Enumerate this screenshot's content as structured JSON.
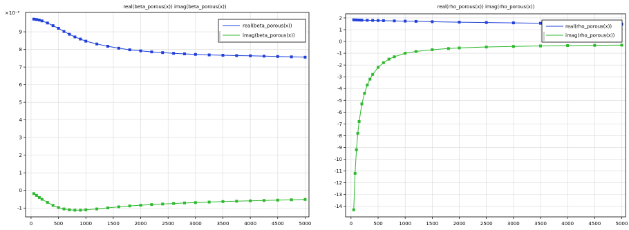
{
  "chart_data": [
    {
      "type": "line",
      "title": "real(beta_porous(x))  imag(beta_porous(x))",
      "y_exponent_label": "×10⁻⁶",
      "x_ticks": [
        "0",
        "500",
        "1000",
        "1500",
        "2000",
        "2500",
        "3000",
        "3500",
        "4000",
        "4500",
        "5000"
      ],
      "y_ticks": [
        "-1",
        "0",
        "1",
        "2",
        "3",
        "4",
        "5",
        "6",
        "7",
        "8",
        "9"
      ],
      "xlim": [
        -100,
        5070
      ],
      "ylim": [
        -1.5,
        10.1
      ],
      "grid": true,
      "legend_position": "top-right",
      "series": [
        {
          "name": "real(beta_porous(x))",
          "color": "#1f3fd8",
          "x": [
            50,
            100,
            150,
            200,
            300,
            400,
            500,
            600,
            700,
            800,
            900,
            1000,
            1200,
            1400,
            1600,
            1800,
            2000,
            2200,
            2400,
            2600,
            2800,
            3000,
            3250,
            3500,
            3750,
            4000,
            4250,
            4500,
            4750,
            5000
          ],
          "y": [
            9.72,
            9.7,
            9.67,
            9.62,
            9.5,
            9.35,
            9.2,
            9.02,
            8.86,
            8.71,
            8.59,
            8.47,
            8.31,
            8.18,
            8.07,
            7.98,
            7.92,
            7.86,
            7.82,
            7.78,
            7.75,
            7.72,
            7.69,
            7.67,
            7.65,
            7.64,
            7.62,
            7.6,
            7.58,
            7.56
          ]
        },
        {
          "name": "imag(beta_porous(x))",
          "color": "#2eb82e",
          "x": [
            50,
            100,
            150,
            200,
            300,
            400,
            500,
            600,
            700,
            800,
            900,
            1000,
            1200,
            1400,
            1600,
            1800,
            2000,
            2200,
            2400,
            2600,
            2800,
            3000,
            3250,
            3500,
            3750,
            4000,
            4250,
            4500,
            4750,
            5000
          ],
          "y": [
            -0.18,
            -0.28,
            -0.4,
            -0.5,
            -0.68,
            -0.85,
            -0.97,
            -1.05,
            -1.1,
            -1.12,
            -1.12,
            -1.1,
            -1.05,
            -0.99,
            -0.93,
            -0.88,
            -0.84,
            -0.8,
            -0.77,
            -0.74,
            -0.71,
            -0.69,
            -0.66,
            -0.63,
            -0.61,
            -0.59,
            -0.57,
            -0.55,
            -0.53,
            -0.51
          ]
        }
      ]
    },
    {
      "type": "line",
      "title": "real(rho_porous(x))  imag(rho_porous(x))",
      "x_ticks": [
        "0",
        "500",
        "1000",
        "1500",
        "2000",
        "2500",
        "3000",
        "3500",
        "4000",
        "4500",
        "5000"
      ],
      "y_ticks": [
        "-14",
        "-13",
        "-12",
        "-11",
        "-10",
        "-9",
        "-8",
        "-7",
        "-6",
        "-5",
        "-4",
        "-3",
        "-2",
        "-1",
        "0",
        "1",
        "2"
      ],
      "xlim": [
        -100,
        5070
      ],
      "ylim": [
        -14.9,
        2.35
      ],
      "grid": true,
      "legend_position": "top-right",
      "series": [
        {
          "name": "real(rho_porous(x))",
          "color": "#1f3fd8",
          "x": [
            50,
            100,
            150,
            200,
            300,
            400,
            500,
            600,
            800,
            1000,
            1200,
            1500,
            2000,
            2500,
            3000,
            3500,
            4000,
            4500,
            5000
          ],
          "y": [
            1.84,
            1.83,
            1.82,
            1.81,
            1.8,
            1.79,
            1.78,
            1.77,
            1.75,
            1.73,
            1.71,
            1.68,
            1.64,
            1.61,
            1.58,
            1.55,
            1.52,
            1.5,
            1.48
          ]
        },
        {
          "name": "imag(rho_porous(x))",
          "color": "#2eb82e",
          "x": [
            50,
            75,
            100,
            125,
            150,
            200,
            250,
            300,
            350,
            400,
            500,
            600,
            700,
            800,
            1000,
            1200,
            1500,
            1800,
            2000,
            2500,
            3000,
            3500,
            4000,
            4500,
            5000
          ],
          "y": [
            -14.3,
            -11.2,
            -9.2,
            -7.8,
            -6.8,
            -5.3,
            -4.4,
            -3.7,
            -3.2,
            -2.8,
            -2.2,
            -1.8,
            -1.5,
            -1.3,
            -1.0,
            -0.85,
            -0.7,
            -0.6,
            -0.55,
            -0.47,
            -0.42,
            -0.38,
            -0.35,
            -0.33,
            -0.31
          ]
        }
      ]
    }
  ]
}
